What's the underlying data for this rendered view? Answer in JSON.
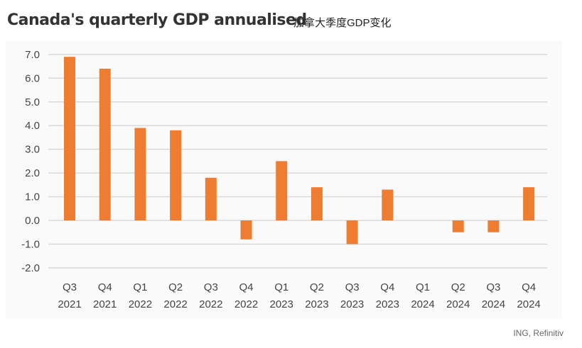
{
  "title": "Canada's quarterly GDP annualised",
  "subtitle": "加拿大季度GDP变化",
  "source": "ING, Refinitiv",
  "chart_data": {
    "type": "bar",
    "title": "Canada's quarterly GDP annualised",
    "categories": [
      [
        "Q3",
        "2021"
      ],
      [
        "Q4",
        "2021"
      ],
      [
        "Q1",
        "2022"
      ],
      [
        "Q2",
        "2022"
      ],
      [
        "Q3",
        "2022"
      ],
      [
        "Q4",
        "2022"
      ],
      [
        "Q1",
        "2023"
      ],
      [
        "Q2",
        "2023"
      ],
      [
        "Q3",
        "2023"
      ],
      [
        "Q4",
        "2023"
      ],
      [
        "Q1",
        "2024"
      ],
      [
        "Q2",
        "2024"
      ],
      [
        "Q3",
        "2024"
      ],
      [
        "Q4",
        "2024"
      ]
    ],
    "values": [
      6.9,
      6.4,
      3.9,
      3.8,
      1.8,
      -0.8,
      2.5,
      1.4,
      -1.0,
      1.3,
      0.0,
      -0.5,
      -0.5,
      1.4
    ],
    "yticks": [
      "7.0",
      "6.0",
      "5.0",
      "4.0",
      "3.0",
      "2.0",
      "1.0",
      "0.0",
      "-1.0",
      "-2.0"
    ],
    "ylim": [
      -2,
      7
    ],
    "grid": true,
    "bar_color": "#EE7D31"
  }
}
